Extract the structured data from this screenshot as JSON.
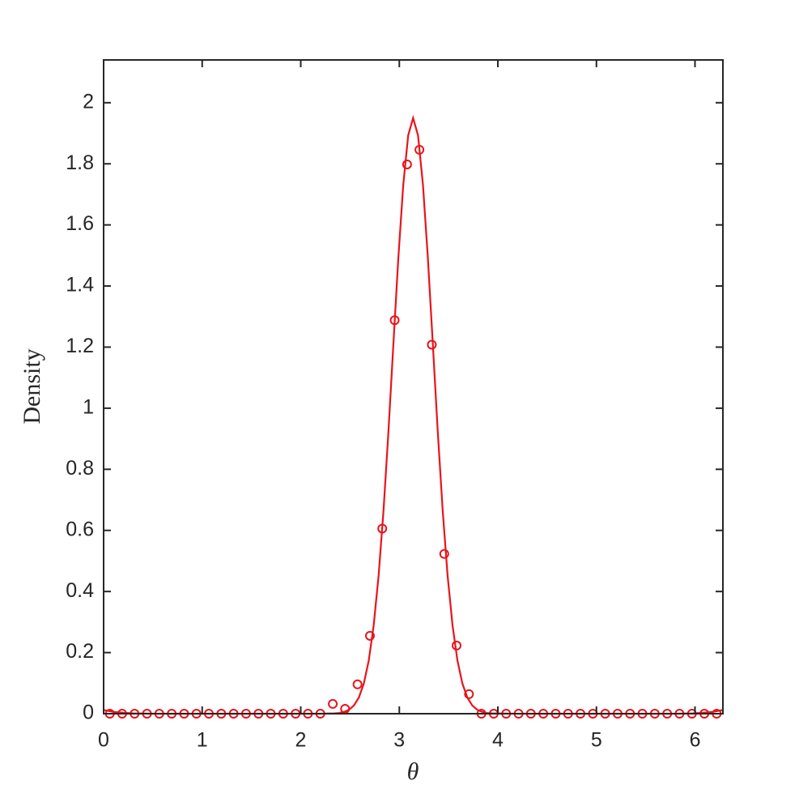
{
  "chart_data": {
    "type": "line",
    "xlabel": "θ",
    "ylabel": "Density",
    "xlim": [
      0,
      6.2832
    ],
    "ylim": [
      0,
      2.14
    ],
    "xticks": [
      0,
      1,
      2,
      3,
      4,
      5,
      6
    ],
    "yticks": [
      0,
      0.2,
      0.4,
      0.6,
      0.8,
      1,
      1.2,
      1.4,
      1.6,
      1.8,
      2
    ],
    "box": true,
    "series": [
      {
        "type": "line",
        "color": "#e8141b",
        "x": [
          0,
          0.1,
          0.2,
          0.3,
          0.5,
          1,
          1.5,
          2,
          2.2,
          2.34,
          2.39,
          2.44,
          2.49,
          2.54,
          2.59,
          2.64,
          2.69,
          2.74,
          2.79,
          2.84,
          2.89,
          2.94,
          2.99,
          3.04,
          3.09,
          3.14,
          3.19,
          3.24,
          3.29,
          3.34,
          3.39,
          3.44,
          3.49,
          3.54,
          3.59,
          3.64,
          3.69,
          3.74,
          3.79,
          3.84,
          3.89,
          3.94,
          4.2,
          4.5,
          5,
          5.5,
          5.8,
          5.98,
          6.08,
          6.18,
          6.28
        ],
        "values": [
          0.012,
          0.006,
          0.003,
          0.001,
          0,
          0,
          0,
          0,
          0,
          0.001,
          0.002,
          0.006,
          0.013,
          0.027,
          0.053,
          0.099,
          0.174,
          0.289,
          0.452,
          0.666,
          0.925,
          1.21,
          1.491,
          1.731,
          1.893,
          1.95,
          1.893,
          1.731,
          1.491,
          1.21,
          0.925,
          0.666,
          0.452,
          0.289,
          0.174,
          0.099,
          0.053,
          0.027,
          0.013,
          0.006,
          0.002,
          0.001,
          0,
          0,
          0,
          0,
          0,
          0.001,
          0.003,
          0.006,
          0.012
        ]
      },
      {
        "type": "scatter",
        "color": "#e8141b",
        "x": [
          0.063,
          0.188,
          0.314,
          0.44,
          0.565,
          0.691,
          0.817,
          0.942,
          1.068,
          1.194,
          1.319,
          1.445,
          1.571,
          1.696,
          1.822,
          1.948,
          2.073,
          2.199,
          2.325,
          2.45,
          2.576,
          2.702,
          2.827,
          2.953,
          3.079,
          3.204,
          3.33,
          3.456,
          3.581,
          3.707,
          3.833,
          3.958,
          4.084,
          4.21,
          4.335,
          4.461,
          4.587,
          4.712,
          4.838,
          4.964,
          5.089,
          5.215,
          5.341,
          5.466,
          5.592,
          5.718,
          5.843,
          5.969,
          6.095,
          6.22
        ],
        "values": [
          0,
          0,
          0,
          0,
          0,
          0,
          0,
          0,
          0,
          0,
          0,
          0,
          0,
          0,
          0,
          0,
          0,
          0,
          0.032,
          0.016,
          0.096,
          0.255,
          0.606,
          1.288,
          1.798,
          1.846,
          1.208,
          0.523,
          0.223,
          0.064,
          0,
          0,
          0,
          0,
          0,
          0,
          0,
          0,
          0,
          0,
          0,
          0,
          0,
          0,
          0,
          0,
          0,
          0,
          0,
          0
        ]
      }
    ]
  }
}
